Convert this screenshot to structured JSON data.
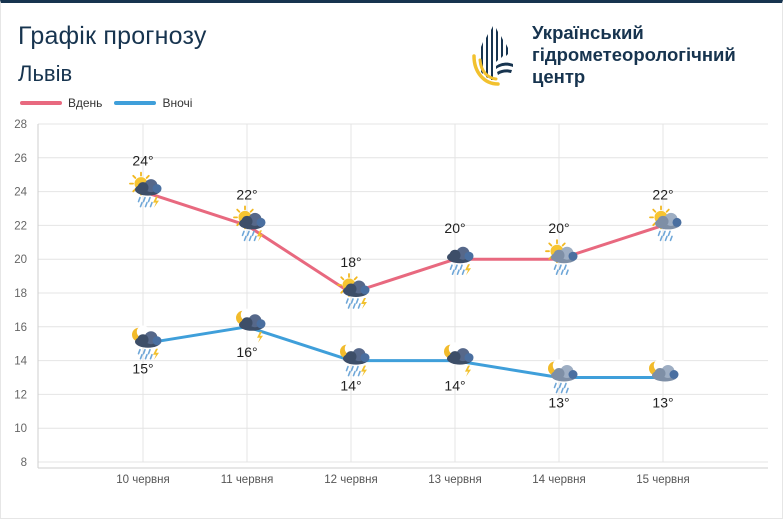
{
  "header": {
    "title": "Графік прогнозу",
    "city": "Львів",
    "org_name_line1": "Український",
    "org_name_line2": "гідрометеорологічний",
    "org_name_line3": "центр"
  },
  "colors": {
    "day": "#e8697f",
    "night": "#3f9fda",
    "brand_dark": "#17344f",
    "brand_yellow": "#f2c12e"
  },
  "chart_data": {
    "type": "line",
    "categories": [
      "10 червня",
      "11 червня",
      "12 червня",
      "13 червня",
      "14 червня",
      "15 червня"
    ],
    "series": [
      {
        "name": "Вдень",
        "values": [
          24,
          22,
          18,
          20,
          20,
          22
        ],
        "labels": [
          "24°",
          "22°",
          "18°",
          "20°",
          "20°",
          "22°"
        ],
        "icons": [
          "sun-storm-rain-icon",
          "sun-storm-rain-icon",
          "sun-storm-rain-icon",
          "storm-rain-icon",
          "sun-cloud-rain-icon",
          "sun-cloud-rain-icon"
        ]
      },
      {
        "name": "Вночі",
        "values": [
          15,
          16,
          14,
          14,
          13,
          13
        ],
        "labels": [
          "15°",
          "16°",
          "14°",
          "14°",
          "13°",
          "13°"
        ],
        "icons": [
          "moon-storm-rain-icon",
          "moon-storm-icon",
          "moon-storm-rain-icon",
          "moon-storm-icon",
          "moon-cloud-rain-icon",
          "moon-cloud-icon"
        ]
      }
    ],
    "yticks": [
      "8",
      "10",
      "12",
      "14",
      "16",
      "18",
      "20",
      "22",
      "24",
      "26",
      "28"
    ],
    "ylim": [
      8,
      28
    ],
    "grid": true,
    "legend_position": "top-left"
  }
}
